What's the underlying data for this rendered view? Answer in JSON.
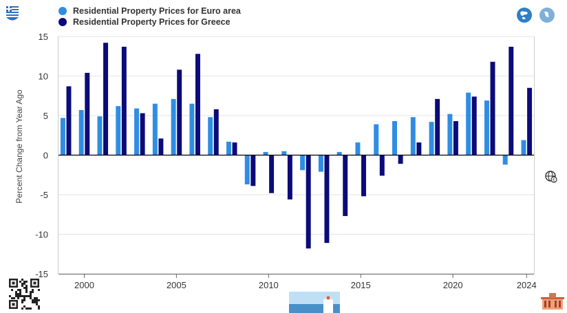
{
  "legend": [
    {
      "label": "Residential Property Prices for Euro area",
      "color": "#2f8de4"
    },
    {
      "label": "Residential Property Prices for Greece",
      "color": "#0b0b7a"
    }
  ],
  "icons": [
    "greece-flag-icon",
    "europe-globe-icon",
    "greece-globe-icon",
    "web-link-icon",
    "qr-code-icon",
    "santorini-thumbnail-icon",
    "parliament-building-icon"
  ],
  "chart_data": {
    "type": "bar",
    "ylabel": "Percent Change from Year Ago",
    "ylim": [
      -15,
      15
    ],
    "yticks": [
      15,
      10,
      5,
      0,
      -5,
      -10,
      -15
    ],
    "xlim": [
      1998.6,
      2024.4
    ],
    "xticks": [
      2000,
      2005,
      2010,
      2015,
      2020,
      2024
    ],
    "grid": true,
    "legend_position": "top-left",
    "x": [
      1999,
      2000,
      2001,
      2002,
      2003,
      2004,
      2005,
      2006,
      2007,
      2008,
      2009,
      2010,
      2011,
      2012,
      2013,
      2014,
      2015,
      2016,
      2017,
      2018,
      2019,
      2020,
      2021,
      2022,
      2023,
      2024
    ],
    "series": [
      {
        "name": "Residential Property Prices for Euro area",
        "color": "#2f8de4",
        "values": [
          4.7,
          5.7,
          4.9,
          6.2,
          5.9,
          6.5,
          7.1,
          6.5,
          4.8,
          1.7,
          -3.7,
          0.4,
          0.5,
          -1.9,
          -2.1,
          0.4,
          1.6,
          3.9,
          4.3,
          4.8,
          4.2,
          5.2,
          7.9,
          6.9,
          -1.2,
          1.9
        ]
      },
      {
        "name": "Residential Property Prices for Greece",
        "color": "#0b0b7a",
        "values": [
          8.7,
          10.4,
          14.2,
          13.7,
          5.3,
          2.1,
          10.8,
          12.8,
          5.8,
          1.6,
          -3.9,
          -4.8,
          -5.6,
          -11.8,
          -11.1,
          -7.7,
          -5.2,
          -2.6,
          -1.1,
          1.6,
          7.1,
          4.3,
          7.4,
          11.8,
          13.7,
          8.5
        ]
      }
    ]
  }
}
